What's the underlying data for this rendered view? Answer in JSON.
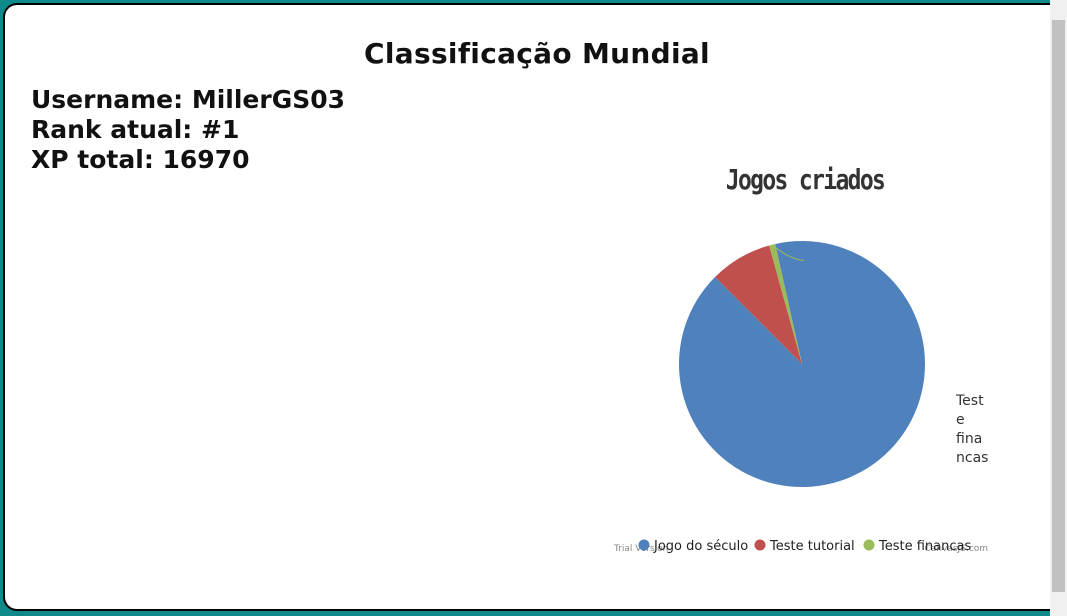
{
  "page": {
    "title": "Classificação Mundial",
    "username_line": "Username: MillerGS03",
    "rank_line": "Rank atual: #1",
    "xp_line": "XP total: 16970"
  },
  "chart_data": {
    "type": "pie",
    "title": "Jogos criados",
    "series": [
      {
        "name": "Jogo do século",
        "value": 91,
        "color": "#4f81bc"
      },
      {
        "name": "Teste tutorial",
        "value": 8.2,
        "color": "#c0504e"
      },
      {
        "name": "Teste financas",
        "value": 0.8,
        "color": "#9bbb58"
      }
    ],
    "index_label": "Teste financas",
    "legend_position": "bottom",
    "watermark_left": "Trial Version",
    "watermark_right": "CanvasJS.com"
  },
  "colors": {
    "background": "#0e8a8a",
    "panel": "#ffffff"
  }
}
